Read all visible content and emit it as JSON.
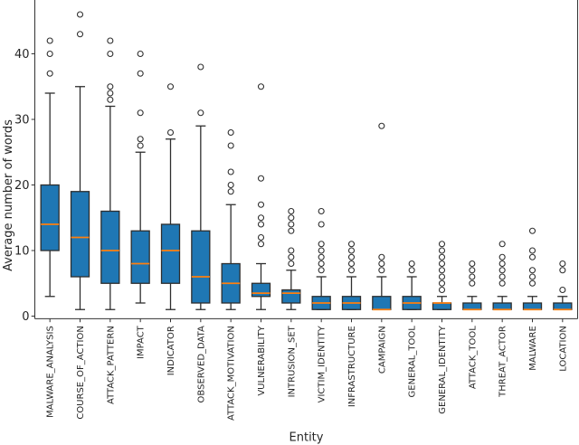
{
  "figure": {
    "background": "#ffffff",
    "colors": {
      "box_fill": "#1f77b4",
      "median": "#ff7f0e",
      "line": "#2e2e2e",
      "spine": "#333333",
      "text": "#262626"
    },
    "flier_marker": "circle"
  },
  "chart_data": {
    "type": "boxplot",
    "title": "",
    "xlabel": "Entity",
    "ylabel": "Average number of words",
    "ylim": [
      -0.4,
      48.2
    ],
    "yticks": [
      0,
      10,
      20,
      30,
      40
    ],
    "grid": false,
    "legend": null,
    "categories": [
      "MALWARE_ANALYSIS",
      "COURSE_OF_ACTION",
      "ATTACK_PATTERN",
      "IMPACT",
      "INDICATOR",
      "OBSERVED_DATA",
      "ATTACK_MOTIVATION",
      "VULNERABILITY",
      "INTRUSION_SET",
      "VICTIM_IDENTITY",
      "INFRASTRUCTURE",
      "CAMPAIGN",
      "GENERAL_TOOL",
      "GENERAL_IDENTITY",
      "ATTACK_TOOL",
      "THREAT_ACTOR",
      "MALWARE",
      "LOCATION"
    ],
    "series": [
      {
        "name": "MALWARE_ANALYSIS",
        "whislo": 3,
        "q1": 10,
        "med": 14,
        "q3": 20,
        "whishi": 34,
        "fliers": [
          37,
          40,
          42
        ]
      },
      {
        "name": "COURSE_OF_ACTION",
        "whislo": 1,
        "q1": 6,
        "med": 12,
        "q3": 19,
        "whishi": 35,
        "fliers": [
          43,
          46
        ]
      },
      {
        "name": "ATTACK_PATTERN",
        "whislo": 1,
        "q1": 5,
        "med": 10,
        "q3": 16,
        "whishi": 32,
        "fliers": [
          33,
          34,
          35,
          40,
          42
        ]
      },
      {
        "name": "IMPACT",
        "whislo": 2,
        "q1": 5,
        "med": 8,
        "q3": 13,
        "whishi": 25,
        "fliers": [
          26,
          27,
          31,
          37,
          40
        ]
      },
      {
        "name": "INDICATOR",
        "whislo": 1,
        "q1": 5,
        "med": 10,
        "q3": 14,
        "whishi": 27,
        "fliers": [
          28,
          35
        ]
      },
      {
        "name": "OBSERVED_DATA",
        "whislo": 1,
        "q1": 2,
        "med": 6,
        "q3": 13,
        "whishi": 29,
        "fliers": [
          31,
          38
        ]
      },
      {
        "name": "ATTACK_MOTIVATION",
        "whislo": 1,
        "q1": 2,
        "med": 5,
        "q3": 8,
        "whishi": 17,
        "fliers": [
          19,
          20,
          22,
          26,
          28
        ]
      },
      {
        "name": "VULNERABILITY",
        "whislo": 1,
        "q1": 3,
        "med": 3.5,
        "q3": 5,
        "whishi": 8,
        "fliers": [
          11,
          12,
          14,
          15,
          17,
          21,
          35
        ]
      },
      {
        "name": "INTRUSION_SET",
        "whislo": 1,
        "q1": 2,
        "med": 3.5,
        "q3": 4,
        "whishi": 7,
        "fliers": [
          8,
          9,
          10,
          13,
          14,
          15,
          16
        ]
      },
      {
        "name": "VICTIM_IDENTITY",
        "whislo": 1,
        "q1": 1,
        "med": 2,
        "q3": 3,
        "whishi": 6,
        "fliers": [
          7,
          8,
          9,
          10,
          11,
          14,
          16
        ]
      },
      {
        "name": "INFRASTRUCTURE",
        "whislo": 1,
        "q1": 1,
        "med": 2,
        "q3": 3,
        "whishi": 6,
        "fliers": [
          7,
          8,
          9,
          10,
          11
        ]
      },
      {
        "name": "CAMPAIGN",
        "whislo": 1,
        "q1": 1,
        "med": 1,
        "q3": 3,
        "whishi": 6,
        "fliers": [
          7,
          8,
          9,
          29
        ]
      },
      {
        "name": "GENERAL_TOOL",
        "whislo": 1,
        "q1": 1,
        "med": 2,
        "q3": 3,
        "whishi": 6,
        "fliers": [
          7,
          8
        ]
      },
      {
        "name": "GENERAL_IDENTITY",
        "whislo": 1,
        "q1": 1,
        "med": 2,
        "q3": 2,
        "whishi": 3,
        "fliers": [
          4,
          5,
          6,
          7,
          8,
          9,
          10,
          11
        ]
      },
      {
        "name": "ATTACK_TOOL",
        "whislo": 1,
        "q1": 1,
        "med": 1,
        "q3": 2,
        "whishi": 3,
        "fliers": [
          5,
          6,
          7,
          8
        ]
      },
      {
        "name": "THREAT_ACTOR",
        "whislo": 1,
        "q1": 1,
        "med": 1,
        "q3": 2,
        "whishi": 3,
        "fliers": [
          5,
          6,
          7,
          8,
          9,
          11
        ]
      },
      {
        "name": "MALWARE",
        "whislo": 1,
        "q1": 1,
        "med": 1,
        "q3": 2,
        "whishi": 3,
        "fliers": [
          5,
          6,
          7,
          9,
          10,
          13
        ]
      },
      {
        "name": "LOCATION",
        "whislo": 1,
        "q1": 1,
        "med": 1,
        "q3": 2,
        "whishi": 3,
        "fliers": [
          4,
          7,
          8
        ]
      }
    ]
  }
}
